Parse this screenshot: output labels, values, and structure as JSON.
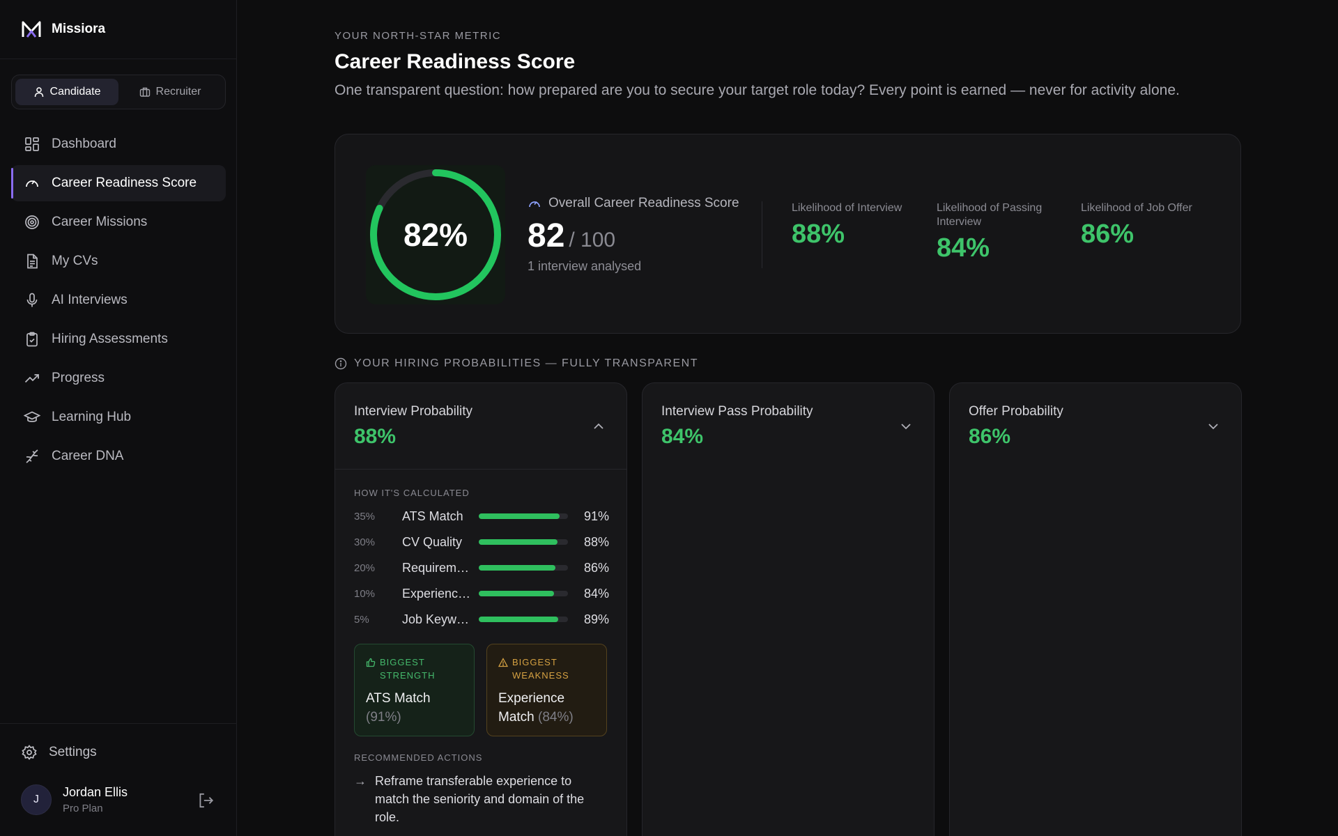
{
  "brand": {
    "name": "Missiora"
  },
  "role_toggle": {
    "candidate": "Candidate",
    "recruiter": "Recruiter",
    "selected": "Candidate"
  },
  "nav": [
    {
      "label": "Dashboard",
      "icon": "dashboard-icon"
    },
    {
      "label": "Career Readiness Score",
      "icon": "gauge-icon",
      "active": true
    },
    {
      "label": "Career Missions",
      "icon": "target-icon"
    },
    {
      "label": "My CVs",
      "icon": "document-icon"
    },
    {
      "label": "AI Interviews",
      "icon": "microphone-icon"
    },
    {
      "label": "Hiring Assessments",
      "icon": "clipboard-check-icon"
    },
    {
      "label": "Progress",
      "icon": "trending-up-icon"
    },
    {
      "label": "Learning Hub",
      "icon": "graduation-cap-icon"
    },
    {
      "label": "Career DNA",
      "icon": "dna-icon"
    }
  ],
  "settings": {
    "label": "Settings"
  },
  "user": {
    "initial": "J",
    "name": "Jordan Ellis",
    "plan": "Pro Plan"
  },
  "header": {
    "eyebrow": "YOUR NORTH-STAR METRIC",
    "title": "Career Readiness Score",
    "subtitle": "One transparent question: how prepared are you to secure your target role today? Every point is earned — never for activity alone."
  },
  "score": {
    "ring_label": "82%",
    "ring_fraction": 0.82,
    "overall_label": "Overall Career Readiness Score",
    "value": "82",
    "out_of": "/ 100",
    "meta": "1 interview analysed",
    "kpis": [
      {
        "label": "Likelihood of Interview",
        "value": "88%"
      },
      {
        "label": "Likelihood of Passing Interview",
        "value": "84%"
      },
      {
        "label": "Likelihood of Job Offer",
        "value": "86%"
      }
    ]
  },
  "section": {
    "label": "YOUR HIRING PROBABILITIES — FULLY TRANSPARENT"
  },
  "probabilities": [
    {
      "title": "Interview Probability",
      "value": "88%",
      "expanded": true,
      "calc_label": "HOW IT'S CALCULATED",
      "factors": [
        {
          "weight": "35%",
          "name": "ATS Match",
          "score": "91%",
          "fraction": 0.91
        },
        {
          "weight": "30%",
          "name": "CV Quality",
          "score": "88%",
          "fraction": 0.88
        },
        {
          "weight": "20%",
          "name": "Requirements Match",
          "score": "86%",
          "fraction": 0.86
        },
        {
          "weight": "10%",
          "name": "Experience Match",
          "score": "84%",
          "fraction": 0.84
        },
        {
          "weight": "5%",
          "name": "Job Keywords",
          "score": "89%",
          "fraction": 0.89
        }
      ],
      "strength": {
        "label": "BIGGEST STRENGTH",
        "name": "ATS Match",
        "pct": "(91%)"
      },
      "weakness": {
        "label": "BIGGEST WEAKNESS",
        "name": "Experience Match",
        "pct": "(84%)"
      },
      "rec_label": "RECOMMENDED ACTIONS",
      "recommendations": [
        "Reframe transferable experience to match the seniority and domain of the role."
      ]
    },
    {
      "title": "Interview Pass Probability",
      "value": "84%",
      "expanded": false
    },
    {
      "title": "Offer Probability",
      "value": "86%",
      "expanded": false
    }
  ],
  "colors": {
    "accent_green": "#3ec46a",
    "accent_purple": "#8a6cf0",
    "warning": "#d5a142"
  }
}
